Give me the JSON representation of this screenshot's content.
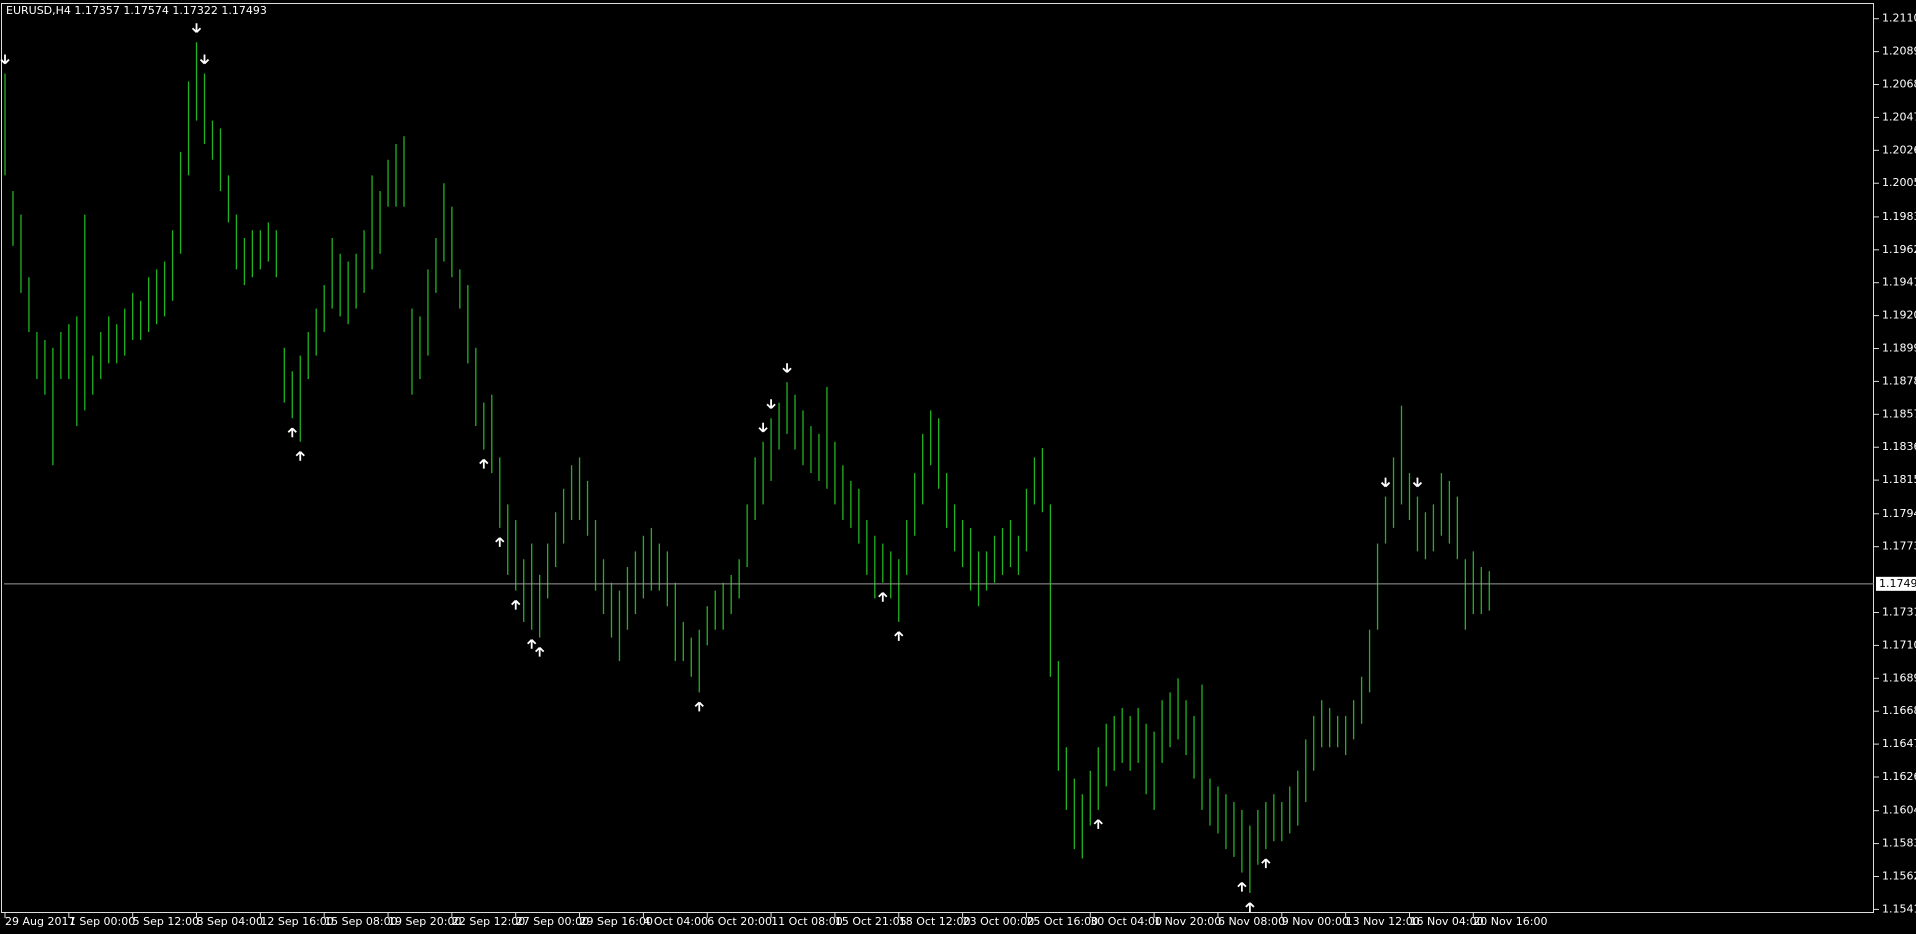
{
  "chart_data": {
    "type": "ohlc_bar",
    "title": "EURUSD,H4  1.17357 1.17574 1.17322 1.17493",
    "color": "#22b322",
    "current_price": 1.17493,
    "ylim": [
      1.15392,
      1.21194
    ],
    "yticks": [
      {
        "value": 1.211,
        "label": "1.21100"
      },
      {
        "value": 1.2089,
        "label": "1.20890"
      },
      {
        "value": 1.2068,
        "label": "1.20680"
      },
      {
        "value": 1.2047,
        "label": "1.20470"
      },
      {
        "value": 1.2026,
        "label": "1.20260"
      },
      {
        "value": 1.2005,
        "label": "1.20050"
      },
      {
        "value": 1.19835,
        "label": "1.19835"
      },
      {
        "value": 1.19625,
        "label": "1.19625"
      },
      {
        "value": 1.19415,
        "label": "1.19415"
      },
      {
        "value": 1.19205,
        "label": "1.19205"
      },
      {
        "value": 1.18995,
        "label": "1.18995"
      },
      {
        "value": 1.18785,
        "label": "1.18785"
      },
      {
        "value": 1.18575,
        "label": "1.18575"
      },
      {
        "value": 1.18365,
        "label": "1.18365"
      },
      {
        "value": 1.18155,
        "label": "1.18155"
      },
      {
        "value": 1.1794,
        "label": "1.17940"
      },
      {
        "value": 1.1773,
        "label": "1.17730"
      },
      {
        "value": 1.1731,
        "label": "1.17310"
      },
      {
        "value": 1.171,
        "label": "1.17100"
      },
      {
        "value": 1.1689,
        "label": "1.16890"
      },
      {
        "value": 1.1668,
        "label": "1.16680"
      },
      {
        "value": 1.1647,
        "label": "1.16470"
      },
      {
        "value": 1.1626,
        "label": "1.16260"
      },
      {
        "value": 1.16045,
        "label": "1.16045"
      },
      {
        "value": 1.15835,
        "label": "1.15835"
      },
      {
        "value": 1.15625,
        "label": "1.15625"
      },
      {
        "value": 1.15415,
        "label": "1.15415"
      }
    ],
    "categories": [
      "29 Aug 2017",
      null,
      null,
      null,
      null,
      null,
      null,
      null,
      "1 Sep 00:00",
      null,
      null,
      null,
      null,
      null,
      null,
      null,
      "5 Sep 12:00",
      null,
      null,
      null,
      null,
      null,
      null,
      null,
      "8 Sep 04:00",
      null,
      null,
      null,
      null,
      null,
      null,
      null,
      "12 Sep 16:00",
      null,
      null,
      null,
      null,
      null,
      null,
      null,
      "15 Sep 08:00",
      null,
      null,
      null,
      null,
      null,
      null,
      null,
      "19 Sep 20:00",
      null,
      null,
      null,
      null,
      null,
      null,
      null,
      "22 Sep 12:00",
      null,
      null,
      null,
      null,
      null,
      null,
      null,
      "27 Sep 00:00",
      null,
      null,
      null,
      null,
      null,
      null,
      null,
      "29 Sep 16:00",
      null,
      null,
      null,
      null,
      null,
      null,
      null,
      "4 Oct 04:00",
      null,
      null,
      null,
      null,
      null,
      null,
      null,
      "6 Oct 20:00",
      null,
      null,
      null,
      null,
      null,
      null,
      null,
      "11 Oct 08:00",
      null,
      null,
      null,
      null,
      null,
      null,
      null,
      "15 Oct 21:05",
      null,
      null,
      null,
      null,
      null,
      null,
      null,
      "18 Oct 12:00",
      null,
      null,
      null,
      null,
      null,
      null,
      null,
      "23 Oct 00:00",
      null,
      null,
      null,
      null,
      null,
      null,
      null,
      "25 Oct 16:00",
      null,
      null,
      null,
      null,
      null,
      null,
      null,
      "30 Oct 04:00",
      null,
      null,
      null,
      null,
      null,
      null,
      null,
      "1 Nov 20:00",
      null,
      null,
      null,
      null,
      null,
      null,
      null,
      "6 Nov 08:00",
      null,
      null,
      null,
      null,
      null,
      null,
      null,
      "9 Nov 00:00",
      null,
      null,
      null,
      null,
      null,
      null,
      null,
      "13 Nov 12:00",
      null,
      null,
      null,
      null,
      null,
      null,
      null,
      "16 Nov 04:00",
      null,
      null,
      null,
      null,
      null,
      null,
      null,
      "20 Nov 16:00",
      null,
      null
    ],
    "high": [
      1.2075,
      1.2,
      1.1985,
      1.1945,
      1.191,
      1.1905,
      1.19,
      1.191,
      1.1915,
      1.192,
      1.1985,
      1.1895,
      1.191,
      1.192,
      1.1915,
      1.1925,
      1.1935,
      1.193,
      1.1945,
      1.195,
      1.1955,
      1.1975,
      1.2025,
      1.207,
      1.2095,
      1.2075,
      1.2045,
      1.204,
      1.201,
      1.1985,
      1.197,
      1.1975,
      1.1975,
      1.198,
      1.1975,
      1.19,
      1.1885,
      1.1895,
      1.191,
      1.1925,
      1.194,
      1.197,
      1.196,
      1.1955,
      1.196,
      1.1975,
      1.201,
      1.2,
      1.202,
      1.203,
      1.2035,
      1.1925,
      1.192,
      1.195,
      1.197,
      1.2005,
      1.199,
      1.195,
      1.194,
      1.19,
      1.1865,
      1.187,
      1.183,
      1.18,
      1.179,
      1.1765,
      1.1775,
      1.1755,
      1.1775,
      1.1795,
      1.181,
      1.1825,
      1.183,
      1.1815,
      1.179,
      1.1765,
      1.175,
      1.1745,
      1.176,
      1.177,
      1.178,
      1.1785,
      1.1775,
      1.177,
      1.175,
      1.1725,
      1.1715,
      1.172,
      1.1735,
      1.1745,
      1.175,
      1.1755,
      1.1765,
      1.18,
      1.183,
      1.184,
      1.1855,
      1.1865,
      1.1878,
      1.187,
      1.186,
      1.185,
      1.1845,
      1.1875,
      1.184,
      1.1825,
      1.1815,
      1.181,
      1.179,
      1.178,
      1.1775,
      1.177,
      1.1765,
      1.179,
      1.182,
      1.1845,
      1.186,
      1.1855,
      1.182,
      1.18,
      1.179,
      1.1785,
      1.177,
      1.177,
      1.178,
      1.1785,
      1.179,
      1.178,
      1.181,
      1.183,
      1.1836,
      1.18,
      1.17,
      1.1645,
      1.1625,
      1.1615,
      1.163,
      1.1645,
      1.166,
      1.1665,
      1.167,
      1.1665,
      1.167,
      1.166,
      1.1655,
      1.1675,
      1.168,
      1.1689,
      1.1675,
      1.1665,
      1.1685,
      1.1625,
      1.162,
      1.1615,
      1.161,
      1.1605,
      1.1595,
      1.1605,
      1.161,
      1.1615,
      1.161,
      1.162,
      1.163,
      1.165,
      1.1665,
      1.1675,
      1.167,
      1.1665,
      1.1665,
      1.1675,
      1.169,
      1.172,
      1.1775,
      1.1805,
      1.183,
      1.1863,
      1.182,
      1.1805,
      1.1795,
      1.18,
      1.182,
      1.1815,
      1.1805,
      1.1765,
      1.177,
      1.176,
      1.17574
    ],
    "low": [
      1.201,
      1.1965,
      1.1935,
      1.191,
      1.188,
      1.187,
      1.1825,
      1.188,
      1.188,
      1.185,
      1.186,
      1.187,
      1.188,
      1.189,
      1.189,
      1.1895,
      1.1905,
      1.1905,
      1.191,
      1.1915,
      1.192,
      1.193,
      1.196,
      1.201,
      1.2045,
      1.203,
      1.202,
      1.2,
      1.198,
      1.195,
      1.194,
      1.1945,
      1.195,
      1.1955,
      1.1945,
      1.1865,
      1.1855,
      1.184,
      1.188,
      1.1895,
      1.191,
      1.1925,
      1.192,
      1.1915,
      1.1925,
      1.1935,
      1.195,
      1.196,
      1.199,
      1.199,
      1.199,
      1.187,
      1.188,
      1.1895,
      1.1935,
      1.1955,
      1.1945,
      1.1925,
      1.189,
      1.185,
      1.1835,
      1.182,
      1.1785,
      1.1755,
      1.1745,
      1.1725,
      1.172,
      1.1715,
      1.174,
      1.176,
      1.1775,
      1.179,
      1.179,
      1.178,
      1.1745,
      1.173,
      1.1715,
      1.17,
      1.172,
      1.173,
      1.174,
      1.1745,
      1.1745,
      1.1735,
      1.17,
      1.17,
      1.169,
      1.168,
      1.171,
      1.172,
      1.172,
      1.173,
      1.174,
      1.176,
      1.179,
      1.18,
      1.1815,
      1.1835,
      1.1845,
      1.1835,
      1.1825,
      1.182,
      1.1815,
      1.181,
      1.18,
      1.179,
      1.1785,
      1.1775,
      1.1755,
      1.174,
      1.175,
      1.174,
      1.1725,
      1.1755,
      1.178,
      1.18,
      1.1825,
      1.181,
      1.1785,
      1.177,
      1.176,
      1.1745,
      1.1735,
      1.1745,
      1.175,
      1.1755,
      1.176,
      1.1755,
      1.177,
      1.18,
      1.1795,
      1.169,
      1.163,
      1.1605,
      1.158,
      1.1574,
      1.1595,
      1.1605,
      1.162,
      1.163,
      1.1635,
      1.163,
      1.1635,
      1.1615,
      1.1605,
      1.1635,
      1.1645,
      1.165,
      1.164,
      1.1625,
      1.1605,
      1.1595,
      1.159,
      1.158,
      1.1575,
      1.1565,
      1.1552,
      1.157,
      1.158,
      1.1585,
      1.1585,
      1.159,
      1.1595,
      1.161,
      1.163,
      1.1645,
      1.1645,
      1.1645,
      1.164,
      1.165,
      1.166,
      1.168,
      1.172,
      1.1775,
      1.1785,
      1.18,
      1.179,
      1.177,
      1.1765,
      1.177,
      1.178,
      1.1775,
      1.1765,
      1.172,
      1.173,
      1.173,
      1.17322
    ],
    "signals": [
      "down",
      null,
      null,
      null,
      null,
      null,
      null,
      null,
      null,
      null,
      null,
      null,
      null,
      null,
      null,
      null,
      null,
      null,
      null,
      null,
      null,
      null,
      null,
      null,
      "down",
      "down",
      null,
      null,
      null,
      null,
      null,
      null,
      null,
      null,
      null,
      null,
      "up",
      "up",
      null,
      null,
      null,
      null,
      null,
      null,
      null,
      null,
      null,
      null,
      null,
      null,
      null,
      null,
      null,
      null,
      null,
      null,
      null,
      null,
      null,
      null,
      "up",
      null,
      "up",
      null,
      "up",
      null,
      "up",
      "up",
      null,
      null,
      null,
      null,
      null,
      null,
      null,
      null,
      null,
      null,
      null,
      null,
      null,
      null,
      null,
      null,
      null,
      null,
      null,
      "up",
      null,
      null,
      null,
      null,
      null,
      null,
      null,
      "down",
      "down",
      null,
      "down",
      null,
      null,
      null,
      null,
      null,
      null,
      null,
      null,
      null,
      null,
      null,
      "up",
      null,
      "up",
      null,
      null,
      null,
      null,
      null,
      null,
      null,
      null,
      null,
      null,
      null,
      null,
      null,
      null,
      null,
      null,
      null,
      null,
      null,
      null,
      null,
      null,
      null,
      null,
      "up",
      null,
      null,
      null,
      null,
      null,
      null,
      null,
      null,
      null,
      null,
      null,
      null,
      null,
      null,
      null,
      null,
      null,
      "up",
      "up",
      null,
      "up",
      null,
      null,
      null,
      null,
      null,
      null,
      null,
      null,
      null,
      null,
      null,
      null,
      null,
      null,
      "down",
      null,
      null,
      null,
      "down",
      null,
      null,
      null,
      null,
      null,
      null,
      null,
      null,
      null,
      null,
      null
    ]
  }
}
